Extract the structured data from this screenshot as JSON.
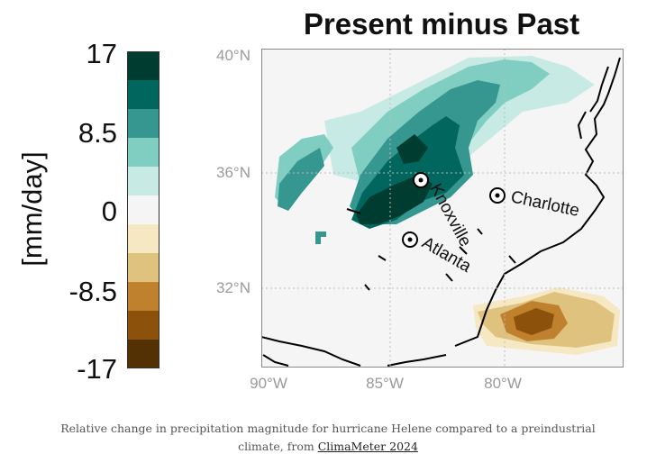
{
  "title": "Present minus Past",
  "colorbar": {
    "unit": "[mm/day]",
    "tick_labels": [
      "17",
      "8.5",
      "0",
      "-8.5",
      "-17"
    ],
    "range": [
      -17,
      17
    ],
    "colors": [
      "#003c30",
      "#01665e",
      "#35978f",
      "#80cdc1",
      "#c7eae5",
      "#f5f5f5",
      "#f6e8c3",
      "#dfc27d",
      "#bf812d",
      "#8c510a",
      "#543005"
    ]
  },
  "map": {
    "lat_ticks": [
      "40°N",
      "36°N",
      "32°N"
    ],
    "lon_ticks": [
      "90°W",
      "85°W",
      "80°W"
    ],
    "cities": [
      {
        "name": "Knoxville"
      },
      {
        "name": "Atlanta"
      },
      {
        "name": "Charlotte"
      }
    ]
  },
  "caption": {
    "text": "Relative change in precipitation magnitude for hurricane Helene compared to a preindustrial climate, from ",
    "link": "ClimaMeter 2024"
  }
}
